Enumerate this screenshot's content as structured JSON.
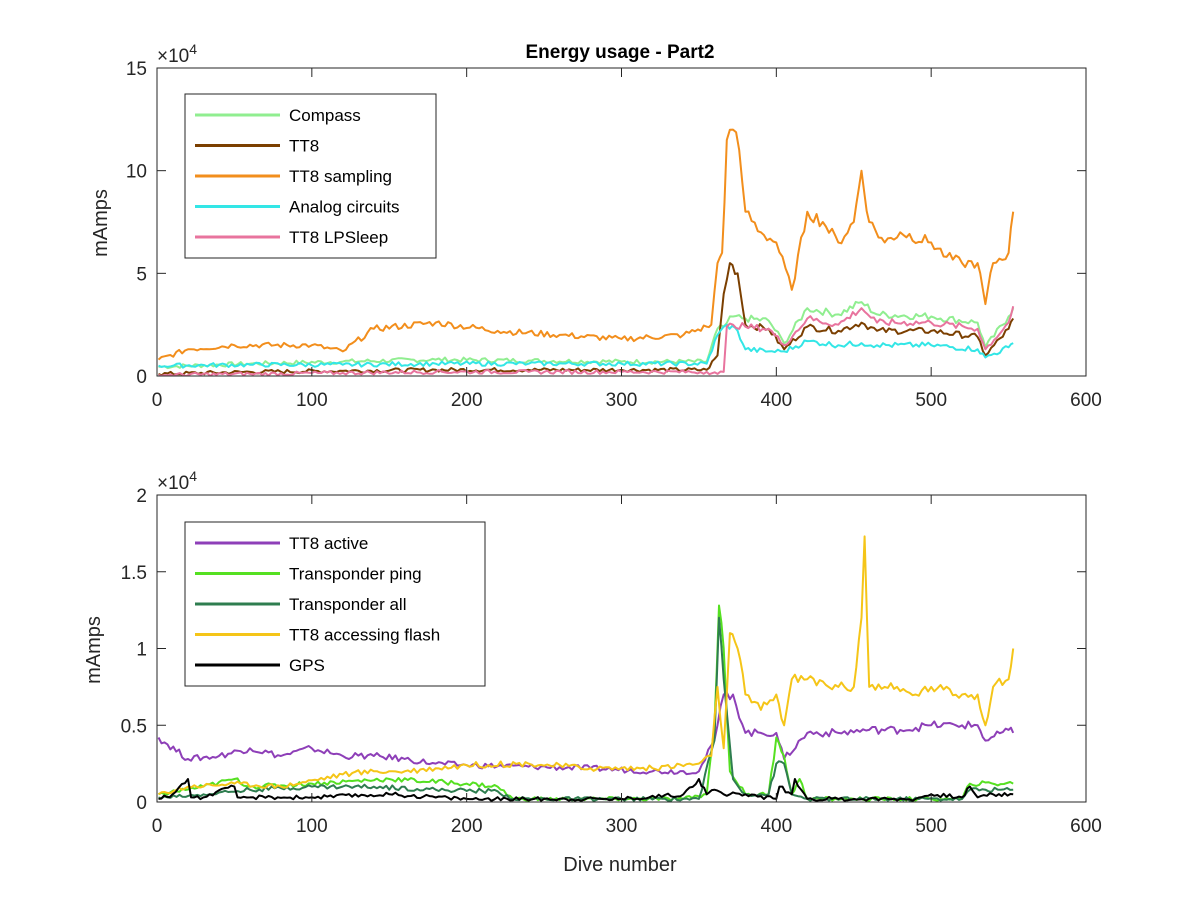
{
  "chart_data": [
    {
      "type": "line",
      "title": "Energy usage - Part2",
      "xlabel": "",
      "ylabel": "mAmps",
      "exponent_label": "×10",
      "exponent_power": "4",
      "xlim": [
        0,
        600
      ],
      "ylim": [
        0,
        15
      ],
      "xticks": [
        "0",
        "100",
        "200",
        "300",
        "400",
        "500",
        "600"
      ],
      "yticks": [
        "0",
        "5",
        "10",
        "15"
      ],
      "legend_position": "top-left",
      "series": [
        {
          "name": "Compass",
          "color": "#90ee90",
          "x": [
            1,
            60,
            120,
            180,
            240,
            300,
            355,
            362,
            366,
            372,
            380,
            395,
            405,
            420,
            440,
            455,
            465,
            500,
            530,
            535,
            550,
            553
          ],
          "y": [
            0.45,
            0.6,
            0.7,
            0.8,
            0.75,
            0.7,
            0.7,
            2.3,
            2.4,
            2.9,
            2.8,
            2.7,
            1.6,
            3.3,
            3.0,
            3.6,
            3.0,
            2.9,
            2.6,
            1.4,
            2.9,
            3.3
          ]
        },
        {
          "name": "TT8",
          "color": "#7b3f00",
          "x": [
            1,
            60,
            120,
            180,
            240,
            300,
            355,
            362,
            366,
            370,
            375,
            380,
            395,
            405,
            420,
            440,
            455,
            465,
            500,
            530,
            535,
            550,
            553
          ],
          "y": [
            0.1,
            0.2,
            0.25,
            0.3,
            0.3,
            0.3,
            0.3,
            1.0,
            4.0,
            5.5,
            5.0,
            2.5,
            2.3,
            1.3,
            2.4,
            2.2,
            2.6,
            2.2,
            2.2,
            1.9,
            1.0,
            2.3,
            2.8
          ]
        },
        {
          "name": "TT8 sampling",
          "color": "#f28e1c",
          "x": [
            1,
            20,
            50,
            100,
            120,
            140,
            180,
            220,
            260,
            300,
            340,
            355,
            358,
            362,
            365,
            368,
            372,
            376,
            380,
            390,
            400,
            410,
            420,
            430,
            440,
            450,
            455,
            460,
            470,
            480,
            500,
            510,
            520,
            530,
            535,
            540,
            550,
            553
          ],
          "y": [
            0.8,
            1.3,
            1.5,
            1.5,
            1.2,
            2.3,
            2.6,
            2.2,
            2.0,
            1.8,
            2.0,
            2.4,
            2.5,
            5.5,
            6.0,
            11.5,
            12.0,
            11.0,
            8.0,
            7.0,
            6.5,
            4.2,
            8.0,
            7.5,
            6.5,
            7.5,
            10.0,
            7.5,
            6.5,
            7.0,
            6.5,
            5.8,
            5.5,
            5.5,
            3.5,
            5.5,
            6.0,
            8.0
          ]
        },
        {
          "name": "Analog circuits",
          "color": "#33e6e6",
          "x": [
            1,
            60,
            120,
            180,
            240,
            300,
            355,
            362,
            368,
            375,
            380,
            395,
            405,
            420,
            440,
            455,
            465,
            500,
            530,
            535,
            550,
            553
          ],
          "y": [
            0.5,
            0.55,
            0.55,
            0.6,
            0.6,
            0.6,
            0.6,
            2.0,
            2.5,
            2.2,
            1.3,
            1.2,
            1.2,
            1.7,
            1.5,
            1.6,
            1.5,
            1.5,
            1.3,
            0.9,
            1.4,
            1.6
          ]
        },
        {
          "name": "TT8 LPSleep",
          "color": "#e8749e",
          "x": [
            1,
            60,
            120,
            180,
            240,
            300,
            355,
            362,
            366,
            368,
            372,
            380,
            395,
            405,
            420,
            440,
            455,
            465,
            500,
            530,
            535,
            550,
            553
          ],
          "y": [
            0.05,
            0.1,
            0.15,
            0.2,
            0.2,
            0.2,
            0.2,
            0.1,
            0.2,
            2.4,
            2.5,
            2.4,
            2.3,
            1.5,
            2.8,
            2.5,
            3.3,
            2.6,
            2.6,
            2.3,
            1.3,
            2.6,
            3.4
          ]
        }
      ]
    },
    {
      "type": "line",
      "title": "",
      "xlabel": "Dive number",
      "ylabel": "mAmps",
      "exponent_label": "×10",
      "exponent_power": "4",
      "xlim": [
        0,
        600
      ],
      "ylim": [
        0,
        2
      ],
      "xticks": [
        "0",
        "100",
        "200",
        "300",
        "400",
        "500",
        "600"
      ],
      "yticks": [
        "0",
        "0.5",
        "1",
        "1.5",
        "2"
      ],
      "legend_position": "top-left",
      "series": [
        {
          "name": "TT8 active",
          "color": "#8e3fb8",
          "x": [
            1,
            20,
            40,
            60,
            80,
            100,
            120,
            140,
            160,
            180,
            200,
            240,
            280,
            320,
            350,
            360,
            366,
            372,
            380,
            390,
            400,
            405,
            420,
            440,
            460,
            480,
            500,
            520,
            530,
            535,
            550,
            553
          ],
          "y": [
            0.42,
            0.28,
            0.3,
            0.35,
            0.3,
            0.35,
            0.3,
            0.3,
            0.28,
            0.25,
            0.24,
            0.23,
            0.22,
            0.2,
            0.2,
            0.4,
            0.7,
            0.7,
            0.45,
            0.45,
            0.45,
            0.28,
            0.45,
            0.45,
            0.47,
            0.47,
            0.5,
            0.5,
            0.5,
            0.4,
            0.47,
            0.45
          ]
        },
        {
          "name": "Transponder ping",
          "color": "#55e021",
          "x": [
            1,
            30,
            50,
            60,
            100,
            150,
            200,
            220,
            230,
            250,
            300,
            340,
            355,
            360,
            363,
            366,
            370,
            380,
            395,
            400,
            405,
            410,
            415,
            420,
            450,
            500,
            520,
            525,
            553
          ],
          "y": [
            0.05,
            0.1,
            0.15,
            0.1,
            0.12,
            0.15,
            0.12,
            0.1,
            0.02,
            0.02,
            0.02,
            0.02,
            0.05,
            0.5,
            1.28,
            1.0,
            0.2,
            0.05,
            0.05,
            0.42,
            0.3,
            0.05,
            0.15,
            0.02,
            0.02,
            0.02,
            0.02,
            0.12,
            0.12
          ]
        },
        {
          "name": "Transponder all",
          "color": "#2e7d4f",
          "x": [
            1,
            30,
            60,
            100,
            140,
            180,
            220,
            230,
            300,
            350,
            360,
            363,
            366,
            372,
            380,
            395,
            400,
            405,
            410,
            420,
            520,
            525,
            553
          ],
          "y": [
            0.03,
            0.05,
            0.08,
            0.1,
            0.1,
            0.08,
            0.07,
            0.02,
            0.02,
            0.02,
            0.4,
            1.2,
            0.8,
            0.15,
            0.05,
            0.05,
            0.25,
            0.25,
            0.05,
            0.02,
            0.02,
            0.08,
            0.08
          ]
        },
        {
          "name": "TT8 accessing flash",
          "color": "#f5c518",
          "x": [
            1,
            20,
            50,
            80,
            120,
            140,
            160,
            180,
            200,
            240,
            280,
            320,
            350,
            358,
            362,
            366,
            370,
            375,
            380,
            390,
            400,
            405,
            410,
            420,
            440,
            450,
            455,
            457,
            460,
            470,
            490,
            500,
            520,
            530,
            535,
            540,
            550,
            553
          ],
          "y": [
            0.05,
            0.1,
            0.12,
            0.1,
            0.18,
            0.2,
            0.2,
            0.22,
            0.24,
            0.25,
            0.22,
            0.22,
            0.25,
            0.3,
            0.75,
            0.35,
            1.1,
            1.0,
            0.7,
            0.6,
            0.7,
            0.5,
            0.8,
            0.8,
            0.75,
            0.75,
            1.2,
            1.73,
            0.75,
            0.75,
            0.7,
            0.75,
            0.7,
            0.7,
            0.5,
            0.75,
            0.8,
            1.0
          ]
        },
        {
          "name": "GPS",
          "color": "#000000",
          "x": [
            1,
            10,
            20,
            22,
            30,
            50,
            52,
            60,
            100,
            150,
            200,
            250,
            300,
            340,
            350,
            355,
            360,
            366,
            370,
            380,
            400,
            402,
            410,
            412,
            420,
            450,
            490,
            500,
            520,
            525,
            530,
            540,
            553
          ],
          "y": [
            0.02,
            0.05,
            0.15,
            0.03,
            0.03,
            0.1,
            0.03,
            0.03,
            0.03,
            0.05,
            0.02,
            0.02,
            0.02,
            0.05,
            0.15,
            0.05,
            0.08,
            0.05,
            0.05,
            0.05,
            0.02,
            0.1,
            0.05,
            0.15,
            0.02,
            0.02,
            0.02,
            0.05,
            0.03,
            0.1,
            0.03,
            0.05,
            0.05
          ]
        }
      ]
    }
  ]
}
